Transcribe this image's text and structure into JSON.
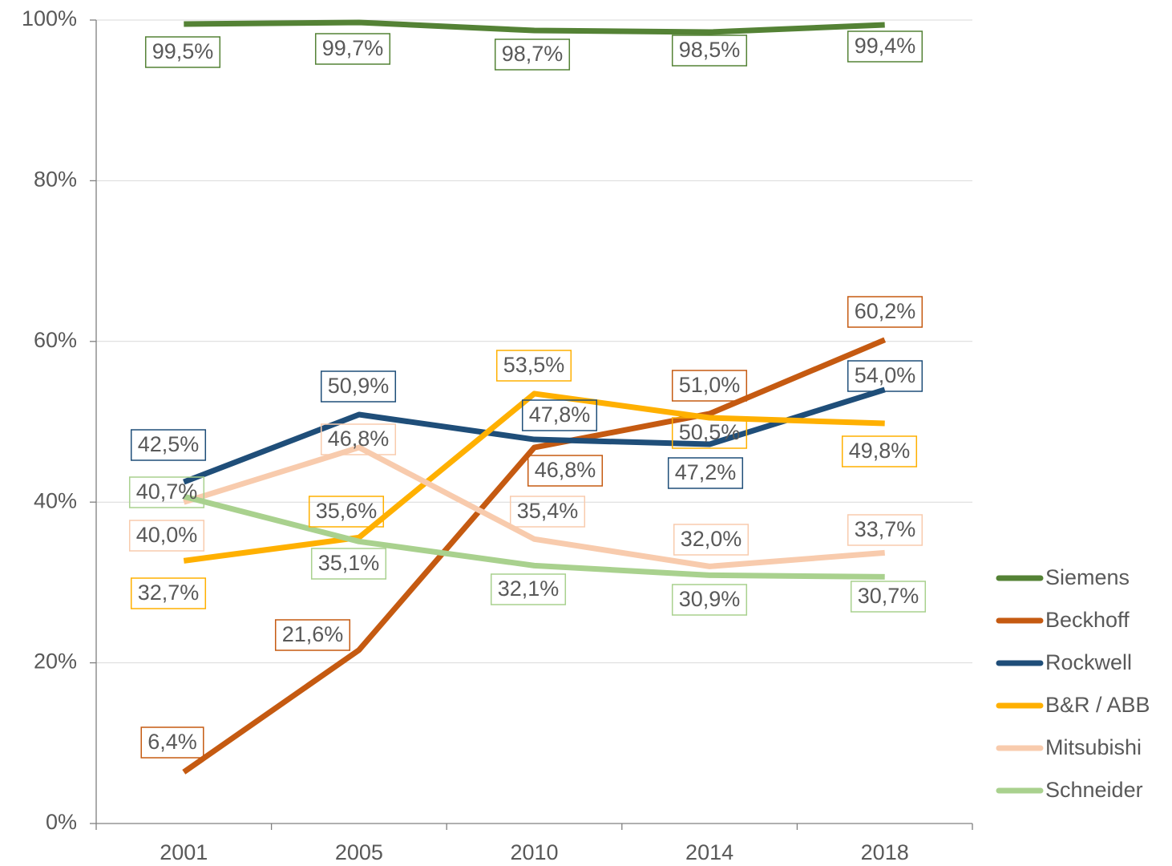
{
  "chart_data": {
    "type": "line",
    "categories": [
      "2001",
      "2005",
      "2010",
      "2014",
      "2018"
    ],
    "series": [
      {
        "name": "Siemens",
        "color": "#548235",
        "values": [
          99.5,
          99.7,
          98.7,
          98.5,
          99.4
        ],
        "value_labels": [
          "99,5%",
          "99,7%",
          "98,7%",
          "98,5%",
          "99,4%"
        ]
      },
      {
        "name": "Beckhoff",
        "color": "#c55a11",
        "values": [
          6.4,
          21.6,
          46.8,
          51.0,
          60.2
        ],
        "value_labels": [
          "6,4%",
          "21,6%",
          "46,8%",
          "51,0%",
          "60,2%"
        ]
      },
      {
        "name": "Rockwell",
        "color": "#1f4e79",
        "values": [
          42.5,
          50.9,
          47.8,
          47.2,
          54.0
        ],
        "value_labels": [
          "42,5%",
          "50,9%",
          "47,8%",
          "47,2%",
          "54,0%"
        ]
      },
      {
        "name": "B&R / ABB",
        "color": "#ffb000",
        "values": [
          32.7,
          35.6,
          53.5,
          50.5,
          49.8
        ],
        "value_labels": [
          "32,7%",
          "35,6%",
          "53,5%",
          "50,5%",
          "49,8%"
        ]
      },
      {
        "name": "Mitsubishi",
        "color": "#f8cbad",
        "values": [
          40.0,
          46.8,
          35.4,
          32.0,
          33.7
        ],
        "value_labels": [
          "40,0%",
          "46,8%",
          "35,4%",
          "32,0%",
          "33,7%"
        ]
      },
      {
        "name": "Schneider",
        "color": "#a9d18e",
        "values": [
          40.7,
          35.1,
          32.1,
          30.9,
          30.7
        ],
        "value_labels": [
          "40,7%",
          "35,1%",
          "32,1%",
          "30,9%",
          "30,7%"
        ]
      }
    ],
    "ylim": [
      0,
      100
    ],
    "yticks": [
      {
        "value": 0,
        "label": "0%"
      },
      {
        "value": 20,
        "label": "20%"
      },
      {
        "value": 40,
        "label": "40%"
      },
      {
        "value": 60,
        "label": "60%"
      },
      {
        "value": 80,
        "label": "80%"
      },
      {
        "value": 100,
        "label": "100%"
      }
    ],
    "grid": true,
    "legend": "right"
  }
}
